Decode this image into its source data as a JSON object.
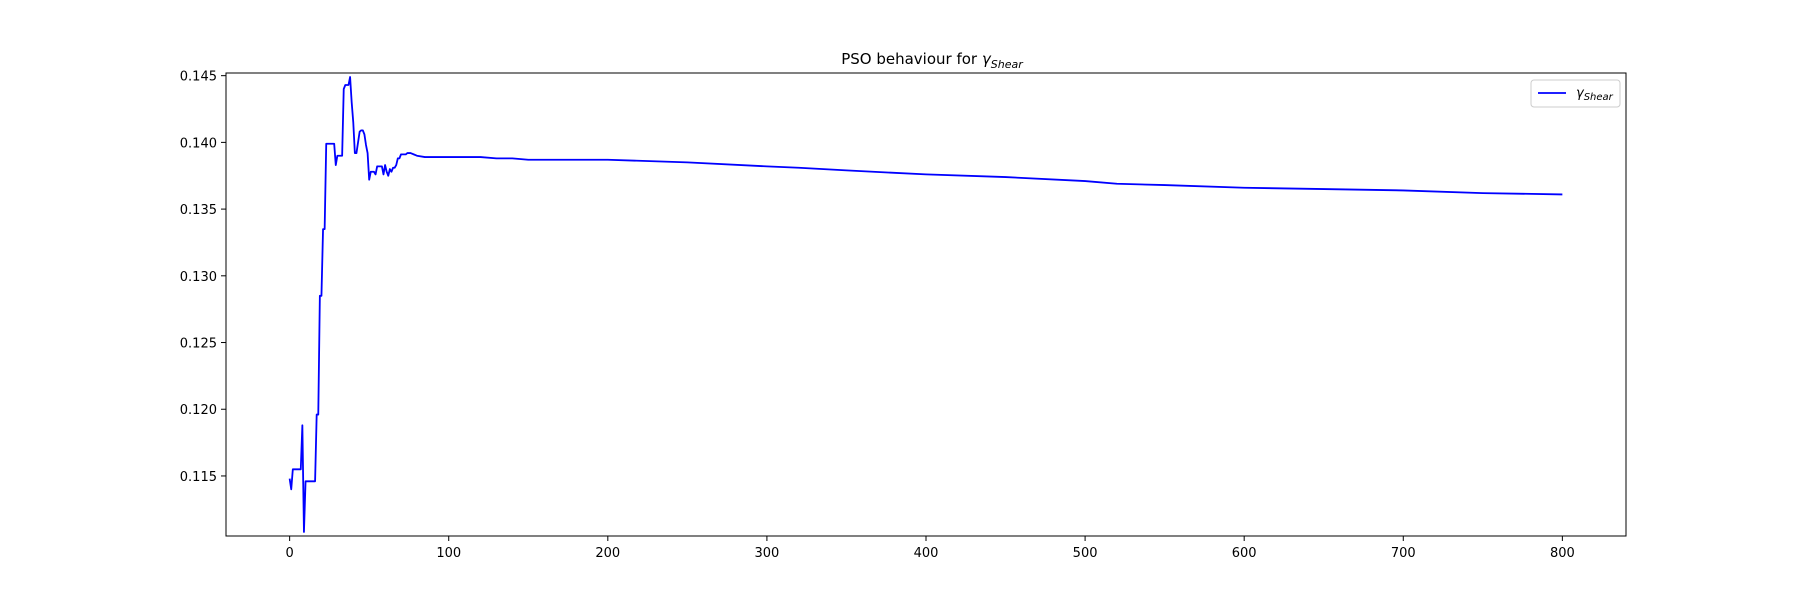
{
  "chart_data": {
    "type": "line",
    "title_prefix": "PSO behaviour for ",
    "title_symbol": "γ",
    "title_subscript": "Shear",
    "xlabel": "",
    "ylabel": "",
    "xlim": [
      -40,
      840
    ],
    "ylim": [
      0.1105,
      0.1452
    ],
    "xticks": [
      0,
      100,
      200,
      300,
      400,
      500,
      600,
      700,
      800
    ],
    "yticks": [
      0.115,
      0.12,
      0.125,
      0.13,
      0.135,
      0.14,
      0.145
    ],
    "ytick_labels": [
      "0.115",
      "0.120",
      "0.125",
      "0.130",
      "0.135",
      "0.140",
      "0.145"
    ],
    "grid": false,
    "legend_position": "top-right",
    "series": [
      {
        "name_symbol": "γ",
        "name_subscript": "Shear",
        "color": "#0000ff",
        "x": [
          0,
          1,
          2,
          3,
          4,
          5,
          6,
          7,
          8,
          9,
          10,
          11,
          12,
          13,
          14,
          15,
          16,
          17,
          18,
          19,
          20,
          21,
          22,
          23,
          24,
          25,
          26,
          27,
          28,
          29,
          30,
          31,
          32,
          33,
          34,
          35,
          36,
          37,
          38,
          39,
          40,
          41,
          42,
          43,
          44,
          45,
          46,
          47,
          48,
          49,
          50,
          51,
          52,
          53,
          54,
          55,
          56,
          57,
          58,
          59,
          60,
          61,
          62,
          63,
          64,
          65,
          66,
          67,
          68,
          69,
          70,
          71,
          72,
          73,
          74,
          75,
          76,
          78,
          80,
          85,
          90,
          95,
          100,
          110,
          120,
          130,
          140,
          150,
          175,
          200,
          250,
          300,
          320,
          350,
          400,
          450,
          500,
          520,
          550,
          600,
          650,
          700,
          750,
          800
        ],
        "y": [
          0.1148,
          0.114,
          0.1155,
          0.1155,
          0.1155,
          0.1155,
          0.1155,
          0.1155,
          0.1188,
          0.1108,
          0.1146,
          0.1146,
          0.1146,
          0.1146,
          0.1146,
          0.1146,
          0.1146,
          0.1196,
          0.1196,
          0.1285,
          0.1285,
          0.1335,
          0.1335,
          0.1399,
          0.1399,
          0.1399,
          0.1399,
          0.1399,
          0.1399,
          0.1383,
          0.139,
          0.139,
          0.139,
          0.139,
          0.144,
          0.1443,
          0.1443,
          0.1443,
          0.1449,
          0.143,
          0.1415,
          0.1392,
          0.1392,
          0.14,
          0.1408,
          0.1409,
          0.1409,
          0.1406,
          0.1398,
          0.1392,
          0.1372,
          0.1378,
          0.1378,
          0.1378,
          0.1376,
          0.1382,
          0.1382,
          0.1382,
          0.1382,
          0.1376,
          0.1383,
          0.1378,
          0.1375,
          0.138,
          0.1378,
          0.1381,
          0.1381,
          0.1383,
          0.1388,
          0.1388,
          0.1391,
          0.1391,
          0.1391,
          0.1391,
          0.1392,
          0.1392,
          0.1392,
          0.1391,
          0.139,
          0.1389,
          0.1389,
          0.1389,
          0.1389,
          0.1389,
          0.1389,
          0.1388,
          0.1388,
          0.1387,
          0.1387,
          0.1387,
          0.1385,
          0.1382,
          0.1381,
          0.1379,
          0.1376,
          0.1374,
          0.1371,
          0.1369,
          0.1368,
          0.1366,
          0.1365,
          0.1364,
          0.1362,
          0.1361
        ]
      }
    ]
  }
}
